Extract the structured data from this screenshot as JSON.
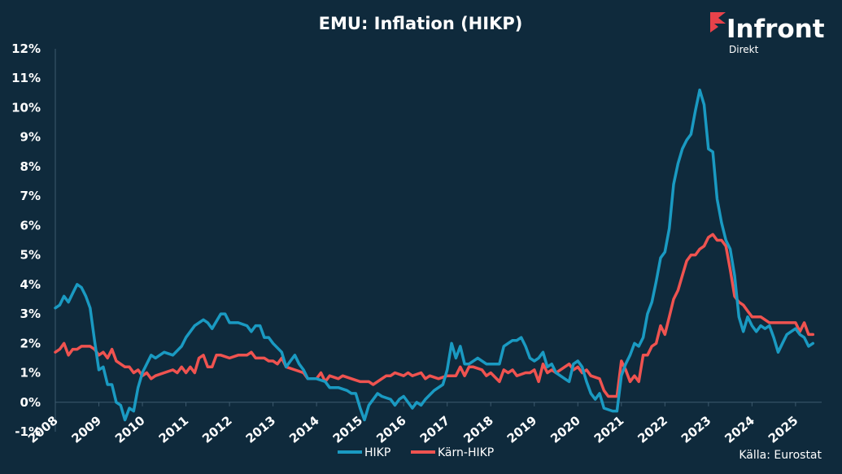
{
  "chart_data": {
    "type": "line",
    "title": "EMU: Inflation (HIKP)",
    "ylim": [
      -1,
      12
    ],
    "yticks": [
      -1,
      0,
      1,
      2,
      3,
      4,
      5,
      6,
      7,
      8,
      9,
      10,
      11,
      12
    ],
    "ytick_suffix": "%",
    "xlim": [
      2008.0,
      2025.6
    ],
    "xticks": [
      2008,
      2009,
      2010,
      2011,
      2012,
      2013,
      2014,
      2015,
      2016,
      2017,
      2018,
      2019,
      2020,
      2021,
      2022,
      2023,
      2024,
      2025
    ],
    "grid": false,
    "legend_position": "bottom-center",
    "series": [
      {
        "name": "HIKP",
        "color": "#1a9ac2",
        "points": [
          [
            2008.0,
            3.2
          ],
          [
            2008.1,
            3.3
          ],
          [
            2008.2,
            3.6
          ],
          [
            2008.3,
            3.4
          ],
          [
            2008.4,
            3.7
          ],
          [
            2008.5,
            4.0
          ],
          [
            2008.6,
            3.9
          ],
          [
            2008.7,
            3.6
          ],
          [
            2008.8,
            3.2
          ],
          [
            2008.9,
            2.1
          ],
          [
            2009.0,
            1.1
          ],
          [
            2009.1,
            1.2
          ],
          [
            2009.2,
            0.6
          ],
          [
            2009.3,
            0.6
          ],
          [
            2009.4,
            0.0
          ],
          [
            2009.5,
            -0.1
          ],
          [
            2009.6,
            -0.6
          ],
          [
            2009.7,
            -0.2
          ],
          [
            2009.8,
            -0.3
          ],
          [
            2009.9,
            0.5
          ],
          [
            2010.0,
            1.0
          ],
          [
            2010.2,
            1.6
          ],
          [
            2010.3,
            1.5
          ],
          [
            2010.5,
            1.7
          ],
          [
            2010.7,
            1.6
          ],
          [
            2010.9,
            1.9
          ],
          [
            2011.0,
            2.2
          ],
          [
            2011.2,
            2.6
          ],
          [
            2011.4,
            2.8
          ],
          [
            2011.5,
            2.7
          ],
          [
            2011.6,
            2.5
          ],
          [
            2011.8,
            3.0
          ],
          [
            2011.9,
            3.0
          ],
          [
            2012.0,
            2.7
          ],
          [
            2012.2,
            2.7
          ],
          [
            2012.4,
            2.6
          ],
          [
            2012.5,
            2.4
          ],
          [
            2012.6,
            2.6
          ],
          [
            2012.7,
            2.6
          ],
          [
            2012.8,
            2.2
          ],
          [
            2012.9,
            2.2
          ],
          [
            2013.0,
            2.0
          ],
          [
            2013.2,
            1.7
          ],
          [
            2013.3,
            1.2
          ],
          [
            2013.4,
            1.4
          ],
          [
            2013.5,
            1.6
          ],
          [
            2013.6,
            1.3
          ],
          [
            2013.7,
            1.1
          ],
          [
            2013.8,
            0.8
          ],
          [
            2013.9,
            0.8
          ],
          [
            2014.0,
            0.8
          ],
          [
            2014.2,
            0.7
          ],
          [
            2014.3,
            0.5
          ],
          [
            2014.5,
            0.5
          ],
          [
            2014.7,
            0.4
          ],
          [
            2014.8,
            0.3
          ],
          [
            2014.9,
            0.3
          ],
          [
            2015.0,
            -0.2
          ],
          [
            2015.1,
            -0.6
          ],
          [
            2015.2,
            -0.1
          ],
          [
            2015.4,
            0.3
          ],
          [
            2015.5,
            0.2
          ],
          [
            2015.7,
            0.1
          ],
          [
            2015.8,
            -0.1
          ],
          [
            2015.9,
            0.1
          ],
          [
            2016.0,
            0.2
          ],
          [
            2016.2,
            -0.2
          ],
          [
            2016.3,
            0.0
          ],
          [
            2016.4,
            -0.1
          ],
          [
            2016.5,
            0.1
          ],
          [
            2016.7,
            0.4
          ],
          [
            2016.9,
            0.6
          ],
          [
            2017.0,
            1.1
          ],
          [
            2017.1,
            2.0
          ],
          [
            2017.2,
            1.5
          ],
          [
            2017.3,
            1.9
          ],
          [
            2017.4,
            1.3
          ],
          [
            2017.5,
            1.3
          ],
          [
            2017.7,
            1.5
          ],
          [
            2017.9,
            1.3
          ],
          [
            2018.0,
            1.3
          ],
          [
            2018.2,
            1.3
          ],
          [
            2018.3,
            1.9
          ],
          [
            2018.4,
            2.0
          ],
          [
            2018.5,
            2.1
          ],
          [
            2018.6,
            2.1
          ],
          [
            2018.7,
            2.2
          ],
          [
            2018.8,
            1.9
          ],
          [
            2018.9,
            1.5
          ],
          [
            2019.0,
            1.4
          ],
          [
            2019.1,
            1.5
          ],
          [
            2019.2,
            1.7
          ],
          [
            2019.3,
            1.2
          ],
          [
            2019.4,
            1.3
          ],
          [
            2019.5,
            1.0
          ],
          [
            2019.7,
            0.8
          ],
          [
            2019.8,
            0.7
          ],
          [
            2019.9,
            1.3
          ],
          [
            2020.0,
            1.4
          ],
          [
            2020.1,
            1.2
          ],
          [
            2020.2,
            0.7
          ],
          [
            2020.3,
            0.3
          ],
          [
            2020.4,
            0.1
          ],
          [
            2020.5,
            0.3
          ],
          [
            2020.6,
            -0.2
          ],
          [
            2020.8,
            -0.3
          ],
          [
            2020.9,
            -0.3
          ],
          [
            2021.0,
            0.9
          ],
          [
            2021.1,
            1.3
          ],
          [
            2021.2,
            1.6
          ],
          [
            2021.3,
            2.0
          ],
          [
            2021.4,
            1.9
          ],
          [
            2021.5,
            2.2
          ],
          [
            2021.6,
            3.0
          ],
          [
            2021.7,
            3.4
          ],
          [
            2021.8,
            4.1
          ],
          [
            2021.9,
            4.9
          ],
          [
            2022.0,
            5.1
          ],
          [
            2022.1,
            5.9
          ],
          [
            2022.2,
            7.4
          ],
          [
            2022.3,
            8.1
          ],
          [
            2022.4,
            8.6
          ],
          [
            2022.5,
            8.9
          ],
          [
            2022.6,
            9.1
          ],
          [
            2022.7,
            9.9
          ],
          [
            2022.8,
            10.6
          ],
          [
            2022.9,
            10.1
          ],
          [
            2023.0,
            8.6
          ],
          [
            2023.1,
            8.5
          ],
          [
            2023.2,
            6.9
          ],
          [
            2023.3,
            6.1
          ],
          [
            2023.4,
            5.5
          ],
          [
            2023.5,
            5.2
          ],
          [
            2023.6,
            4.3
          ],
          [
            2023.7,
            2.9
          ],
          [
            2023.8,
            2.4
          ],
          [
            2023.9,
            2.9
          ],
          [
            2024.0,
            2.6
          ],
          [
            2024.1,
            2.4
          ],
          [
            2024.2,
            2.6
          ],
          [
            2024.3,
            2.5
          ],
          [
            2024.4,
            2.6
          ],
          [
            2024.5,
            2.2
          ],
          [
            2024.6,
            1.7
          ],
          [
            2024.7,
            2.0
          ],
          [
            2024.8,
            2.3
          ],
          [
            2024.9,
            2.4
          ],
          [
            2025.0,
            2.5
          ],
          [
            2025.1,
            2.3
          ],
          [
            2025.2,
            2.2
          ],
          [
            2025.3,
            1.9
          ],
          [
            2025.4,
            2.0
          ]
        ]
      },
      {
        "name": "Kärn-HIKP",
        "color": "#ef5350",
        "points": [
          [
            2008.0,
            1.7
          ],
          [
            2008.1,
            1.8
          ],
          [
            2008.2,
            2.0
          ],
          [
            2008.3,
            1.6
          ],
          [
            2008.4,
            1.8
          ],
          [
            2008.5,
            1.8
          ],
          [
            2008.6,
            1.9
          ],
          [
            2008.7,
            1.9
          ],
          [
            2008.8,
            1.9
          ],
          [
            2008.9,
            1.8
          ],
          [
            2009.0,
            1.6
          ],
          [
            2009.1,
            1.7
          ],
          [
            2009.2,
            1.5
          ],
          [
            2009.3,
            1.8
          ],
          [
            2009.4,
            1.4
          ],
          [
            2009.5,
            1.3
          ],
          [
            2009.6,
            1.2
          ],
          [
            2009.7,
            1.2
          ],
          [
            2009.8,
            1.0
          ],
          [
            2009.9,
            1.1
          ],
          [
            2010.0,
            0.9
          ],
          [
            2010.1,
            1.0
          ],
          [
            2010.2,
            0.8
          ],
          [
            2010.3,
            0.9
          ],
          [
            2010.5,
            1.0
          ],
          [
            2010.7,
            1.1
          ],
          [
            2010.8,
            1.0
          ],
          [
            2010.9,
            1.2
          ],
          [
            2011.0,
            1.0
          ],
          [
            2011.1,
            1.2
          ],
          [
            2011.2,
            1.0
          ],
          [
            2011.3,
            1.5
          ],
          [
            2011.4,
            1.6
          ],
          [
            2011.5,
            1.2
          ],
          [
            2011.6,
            1.2
          ],
          [
            2011.7,
            1.6
          ],
          [
            2011.8,
            1.6
          ],
          [
            2012.0,
            1.5
          ],
          [
            2012.2,
            1.6
          ],
          [
            2012.4,
            1.6
          ],
          [
            2012.5,
            1.7
          ],
          [
            2012.6,
            1.5
          ],
          [
            2012.8,
            1.5
          ],
          [
            2012.9,
            1.4
          ],
          [
            2013.0,
            1.4
          ],
          [
            2013.1,
            1.3
          ],
          [
            2013.2,
            1.5
          ],
          [
            2013.3,
            1.2
          ],
          [
            2013.5,
            1.1
          ],
          [
            2013.7,
            1.0
          ],
          [
            2013.8,
            0.8
          ],
          [
            2014.0,
            0.8
          ],
          [
            2014.1,
            1.0
          ],
          [
            2014.2,
            0.7
          ],
          [
            2014.3,
            0.9
          ],
          [
            2014.5,
            0.8
          ],
          [
            2014.6,
            0.9
          ],
          [
            2014.8,
            0.8
          ],
          [
            2015.0,
            0.7
          ],
          [
            2015.2,
            0.7
          ],
          [
            2015.3,
            0.6
          ],
          [
            2015.5,
            0.8
          ],
          [
            2015.6,
            0.9
          ],
          [
            2015.7,
            0.9
          ],
          [
            2015.8,
            1.0
          ],
          [
            2016.0,
            0.9
          ],
          [
            2016.1,
            1.0
          ],
          [
            2016.2,
            0.9
          ],
          [
            2016.4,
            1.0
          ],
          [
            2016.5,
            0.8
          ],
          [
            2016.6,
            0.9
          ],
          [
            2016.8,
            0.8
          ],
          [
            2017.0,
            0.9
          ],
          [
            2017.2,
            0.9
          ],
          [
            2017.3,
            1.2
          ],
          [
            2017.4,
            0.9
          ],
          [
            2017.5,
            1.2
          ],
          [
            2017.6,
            1.2
          ],
          [
            2017.8,
            1.1
          ],
          [
            2017.9,
            0.9
          ],
          [
            2018.0,
            1.0
          ],
          [
            2018.2,
            0.7
          ],
          [
            2018.3,
            1.1
          ],
          [
            2018.4,
            1.0
          ],
          [
            2018.5,
            1.1
          ],
          [
            2018.6,
            0.9
          ],
          [
            2018.8,
            1.0
          ],
          [
            2018.9,
            1.0
          ],
          [
            2019.0,
            1.1
          ],
          [
            2019.1,
            0.7
          ],
          [
            2019.2,
            1.3
          ],
          [
            2019.3,
            1.0
          ],
          [
            2019.4,
            1.1
          ],
          [
            2019.5,
            1.0
          ],
          [
            2019.6,
            1.1
          ],
          [
            2019.7,
            1.2
          ],
          [
            2019.8,
            1.3
          ],
          [
            2019.9,
            1.1
          ],
          [
            2020.0,
            1.2
          ],
          [
            2020.1,
            1.0
          ],
          [
            2020.2,
            1.1
          ],
          [
            2020.3,
            0.9
          ],
          [
            2020.5,
            0.8
          ],
          [
            2020.6,
            0.4
          ],
          [
            2020.7,
            0.2
          ],
          [
            2020.8,
            0.2
          ],
          [
            2020.9,
            0.2
          ],
          [
            2021.0,
            1.4
          ],
          [
            2021.1,
            1.1
          ],
          [
            2021.2,
            0.7
          ],
          [
            2021.3,
            0.9
          ],
          [
            2021.4,
            0.7
          ],
          [
            2021.5,
            1.6
          ],
          [
            2021.6,
            1.6
          ],
          [
            2021.7,
            1.9
          ],
          [
            2021.8,
            2.0
          ],
          [
            2021.9,
            2.6
          ],
          [
            2022.0,
            2.3
          ],
          [
            2022.1,
            2.9
          ],
          [
            2022.2,
            3.5
          ],
          [
            2022.3,
            3.8
          ],
          [
            2022.4,
            4.3
          ],
          [
            2022.5,
            4.8
          ],
          [
            2022.6,
            5.0
          ],
          [
            2022.7,
            5.0
          ],
          [
            2022.8,
            5.2
          ],
          [
            2022.9,
            5.3
          ],
          [
            2023.0,
            5.6
          ],
          [
            2023.1,
            5.7
          ],
          [
            2023.2,
            5.5
          ],
          [
            2023.3,
            5.5
          ],
          [
            2023.4,
            5.3
          ],
          [
            2023.5,
            4.5
          ],
          [
            2023.6,
            3.6
          ],
          [
            2023.7,
            3.4
          ],
          [
            2023.8,
            3.3
          ],
          [
            2023.9,
            3.1
          ],
          [
            2024.0,
            2.9
          ],
          [
            2024.1,
            2.9
          ],
          [
            2024.2,
            2.9
          ],
          [
            2024.3,
            2.8
          ],
          [
            2024.4,
            2.7
          ],
          [
            2024.5,
            2.7
          ],
          [
            2024.6,
            2.7
          ],
          [
            2024.7,
            2.7
          ],
          [
            2024.8,
            2.7
          ],
          [
            2024.9,
            2.7
          ],
          [
            2025.0,
            2.7
          ],
          [
            2025.1,
            2.4
          ],
          [
            2025.2,
            2.7
          ],
          [
            2025.3,
            2.3
          ],
          [
            2025.4,
            2.3
          ]
        ]
      }
    ]
  },
  "legend": [
    {
      "label": "HIKP",
      "color": "#1a9ac2"
    },
    {
      "label": "Kärn-HIKP",
      "color": "#ef5350"
    }
  ],
  "source": "Källa:  Eurostat",
  "logo": {
    "name": "Infront",
    "sub": "Direkt",
    "icon": "infront-logo-icon",
    "color": "#e8424a"
  }
}
